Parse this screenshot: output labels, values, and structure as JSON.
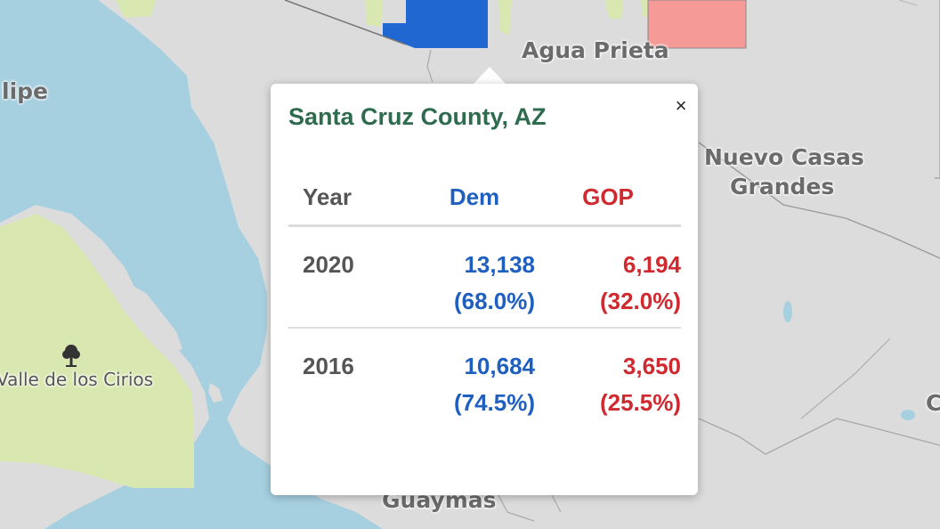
{
  "popup": {
    "title": "Santa Cruz County, AZ",
    "close_label": "×",
    "headers": {
      "year": "Year",
      "dem": "Dem",
      "gop": "GOP"
    },
    "rows": [
      {
        "year": "2020",
        "dem_votes": "13,138",
        "dem_pct": "(68.0%)",
        "gop_votes": "6,194",
        "gop_pct": "(32.0%)"
      },
      {
        "year": "2016",
        "dem_votes": "10,684",
        "dem_pct": "(74.5%)",
        "gop_votes": "3,650",
        "gop_pct": "(25.5%)"
      }
    ]
  },
  "map": {
    "labels": {
      "agua_prieta": "Agua Prieta",
      "nuevo_casas_grandes_line1": "Nuevo Casas",
      "nuevo_casas_grandes_line2": "Grandes",
      "san_felipe_partial": "lipe",
      "valle_de_los_cirios": "Valle de los Cirios",
      "guaymas": "Guaymas",
      "right_edge_partial": "C"
    },
    "colors": {
      "land": "#dcdcdc",
      "water": "#a6d0e0",
      "park": "#d9e8b0",
      "dem_county": "#2167d1",
      "gop_county": "#f59a96",
      "dem_text": "#1f5fbf",
      "gop_text": "#cf2a30",
      "title_text": "#2e6b4f"
    },
    "icons": [
      "park-tree-icon"
    ]
  }
}
